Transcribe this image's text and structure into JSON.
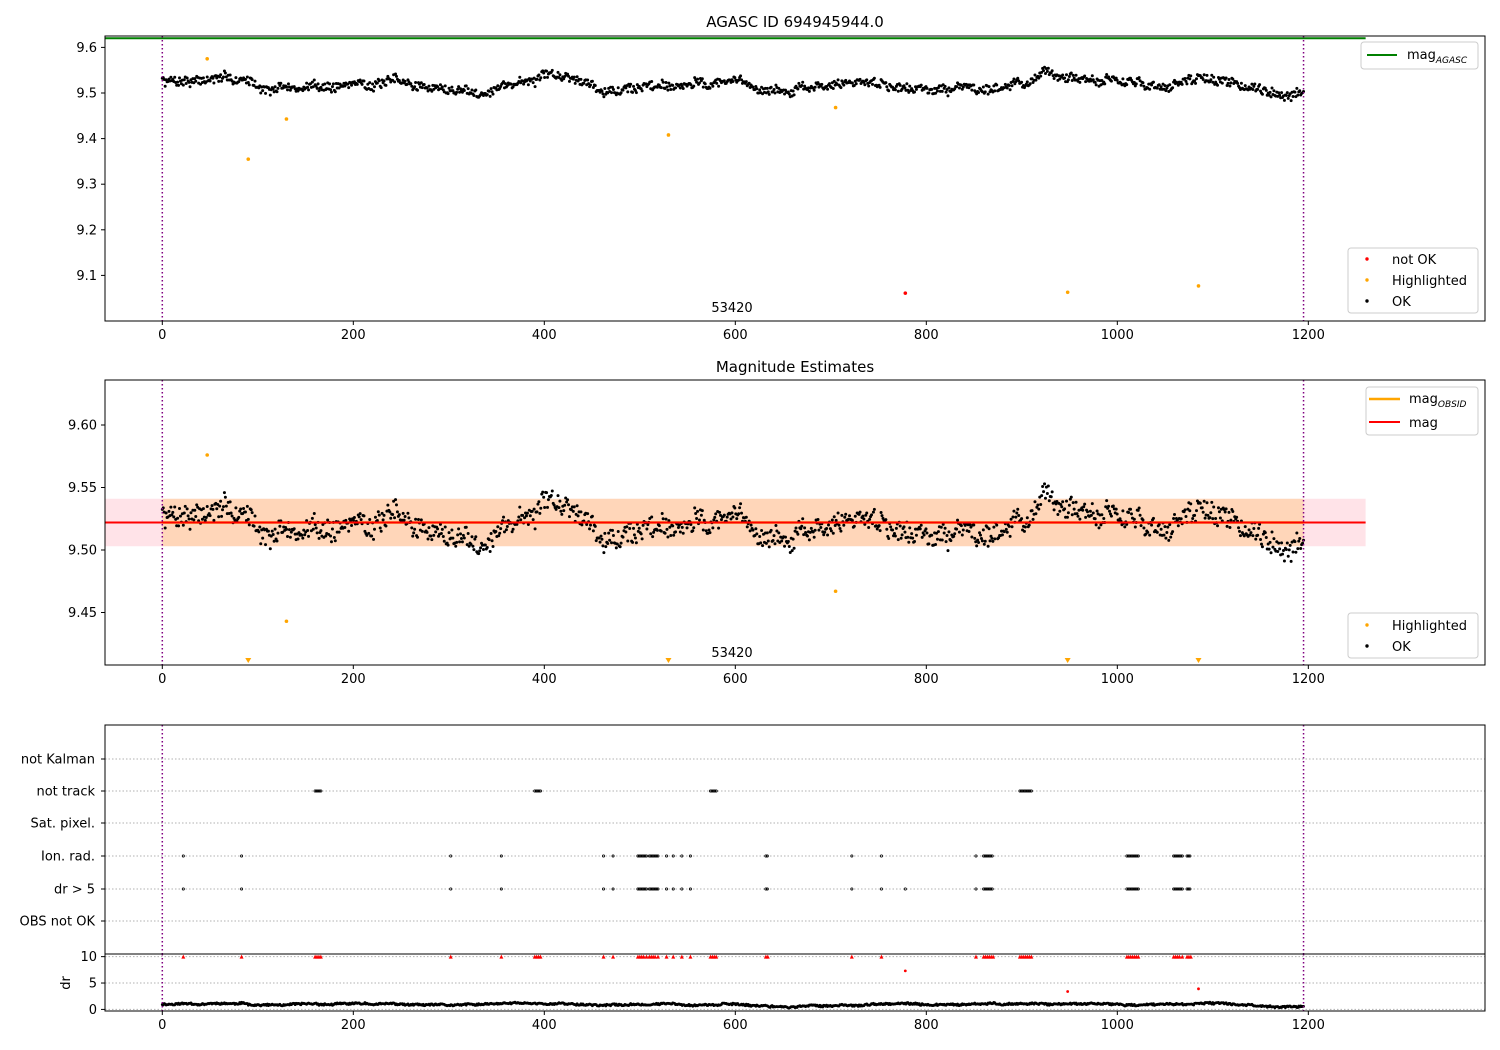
{
  "chart_data": [
    {
      "type": "scatter",
      "title": "AGASC ID 694945944.0",
      "xlim": [
        -60,
        1385
      ],
      "ylim": [
        9.0,
        9.625
      ],
      "xticks": [
        0,
        200,
        400,
        600,
        800,
        1000,
        1200
      ],
      "yticks": [
        9.1,
        9.2,
        9.3,
        9.4,
        9.5,
        9.6
      ],
      "obsid_marker_label": "53420",
      "obsid_boundaries": [
        0,
        1195
      ],
      "reference_line": {
        "name": "mag",
        "subscript": "AGASC",
        "value": 9.62,
        "color": "#008000",
        "x_range": [
          -60,
          1260
        ]
      },
      "ok_points": {
        "name": "OK",
        "color": "#000000",
        "count": 1195,
        "x_range": [
          0,
          1195
        ],
        "mean": 9.52,
        "spread": 0.02
      },
      "highlighted_points": {
        "name": "Highlighted",
        "color": "#ffa500",
        "x": [
          47,
          90,
          130,
          530,
          705,
          948,
          1085
        ],
        "y": [
          9.575,
          9.355,
          9.443,
          9.408,
          9.468,
          9.063,
          9.077
        ]
      },
      "not_ok_points": {
        "name": "not OK",
        "color": "#ff0000",
        "x": [
          778
        ],
        "y": [
          9.061
        ]
      },
      "legend_upper": "top-right",
      "legend_lower": "lower-right"
    },
    {
      "type": "scatter",
      "title": "Magnitude Estimates",
      "xlim": [
        -60,
        1385
      ],
      "ylim": [
        9.408,
        9.636
      ],
      "xticks": [
        0,
        200,
        400,
        600,
        800,
        1000,
        1200
      ],
      "yticks": [
        9.45,
        9.5,
        9.55,
        9.6
      ],
      "yticklabels": [
        "9.45",
        "9.50",
        "9.55",
        "9.60"
      ],
      "obsid_marker_label": "53420",
      "obsid_boundaries": [
        0,
        1195
      ],
      "mag_line": {
        "name": "mag",
        "value": 9.522,
        "color": "#ff0000",
        "x_range": [
          -60,
          1260
        ]
      },
      "mag_band": {
        "low": 9.503,
        "high": 9.541,
        "color": "#ffc0cb"
      },
      "obsid_line": {
        "name": "mag",
        "subscript": "OBSID",
        "value": 9.522,
        "color": "#ffa500",
        "x_range": [
          0,
          1195
        ]
      },
      "obsid_band": {
        "low": 9.503,
        "high": 9.541,
        "color": "#ffa500"
      },
      "ok_points": {
        "name": "OK",
        "color": "#000000",
        "count": 1195,
        "x_range": [
          0,
          1195
        ],
        "mean": 9.522,
        "spread": 0.017
      },
      "highlighted_points": {
        "name": "Highlighted",
        "color": "#ffa500",
        "x": [
          47,
          130,
          705
        ],
        "y": [
          9.576,
          9.443,
          9.467
        ]
      },
      "clipped_markers": {
        "color": "#ffa500",
        "x": [
          90,
          530,
          948,
          1085
        ]
      },
      "legend_upper": "top-right",
      "legend_lower": "lower-right"
    },
    {
      "type": "scatter",
      "title": "",
      "xlim": [
        -60,
        1385
      ],
      "category_labels": [
        "not Kalman",
        "not track",
        "Sat. pixel.",
        "Ion. rad.",
        "dr > 5",
        "OBS not OK"
      ],
      "flags": {
        "not track": [
          [
            160,
            166
          ],
          [
            390,
            396
          ],
          [
            574,
            580
          ],
          [
            898,
            910
          ]
        ],
        "Ion. rad.": [
          [
            22,
            22
          ],
          [
            83,
            83
          ],
          [
            302,
            302
          ],
          [
            355,
            355
          ],
          [
            462,
            462
          ],
          [
            472,
            472
          ],
          [
            498,
            507
          ],
          [
            510,
            519
          ],
          [
            528,
            528
          ],
          [
            535,
            535
          ],
          [
            544,
            544
          ],
          [
            553,
            553
          ],
          [
            632,
            634
          ],
          [
            722,
            722
          ],
          [
            753,
            753
          ],
          [
            852,
            852
          ],
          [
            860,
            870
          ],
          [
            1010,
            1022
          ],
          [
            1059,
            1068
          ],
          [
            1073,
            1077
          ]
        ],
        "dr > 5": [
          [
            22,
            22
          ],
          [
            83,
            83
          ],
          [
            302,
            302
          ],
          [
            355,
            355
          ],
          [
            462,
            462
          ],
          [
            472,
            472
          ],
          [
            498,
            507
          ],
          [
            510,
            519
          ],
          [
            528,
            528
          ],
          [
            535,
            535
          ],
          [
            544,
            544
          ],
          [
            553,
            553
          ],
          [
            632,
            634
          ],
          [
            722,
            722
          ],
          [
            753,
            753
          ],
          [
            778,
            778
          ],
          [
            852,
            852
          ],
          [
            860,
            870
          ],
          [
            1010,
            1022
          ],
          [
            1059,
            1068
          ],
          [
            1073,
            1077
          ]
        ]
      },
      "obsid_boundaries": [
        0,
        1195
      ]
    },
    {
      "type": "scatter",
      "title": "",
      "ylabel": "dr",
      "xlim": [
        -60,
        1385
      ],
      "ylim": [
        -0.3,
        10.5
      ],
      "xticks": [
        0,
        200,
        400,
        600,
        800,
        1000,
        1200
      ],
      "yticks": [
        0,
        5,
        10
      ],
      "dr_points": {
        "color": "#000000",
        "count": 1195,
        "x_range": [
          0,
          1195
        ],
        "mean": 0.9,
        "spread": 0.35
      },
      "dr_outliers": {
        "color": "#ff0000",
        "x": [
          778,
          948,
          1085
        ],
        "y": [
          7.3,
          3.4,
          3.9
        ]
      },
      "clipped_markers": {
        "color": "#ff0000",
        "x": [
          22,
          83,
          160,
          162,
          164,
          166,
          302,
          355,
          390,
          392,
          394,
          396,
          462,
          472,
          498,
          500,
          502,
          504,
          507,
          510,
          512,
          514,
          516,
          519,
          528,
          535,
          544,
          553,
          574,
          576,
          578,
          580,
          632,
          634,
          722,
          753,
          852,
          860,
          862,
          864,
          866,
          868,
          870,
          898,
          900,
          902,
          904,
          906,
          908,
          910,
          1010,
          1012,
          1014,
          1016,
          1018,
          1020,
          1022,
          1059,
          1061,
          1063,
          1065,
          1068,
          1073,
          1075,
          1077
        ]
      },
      "obsid_boundaries": [
        0,
        1195
      ]
    }
  ]
}
